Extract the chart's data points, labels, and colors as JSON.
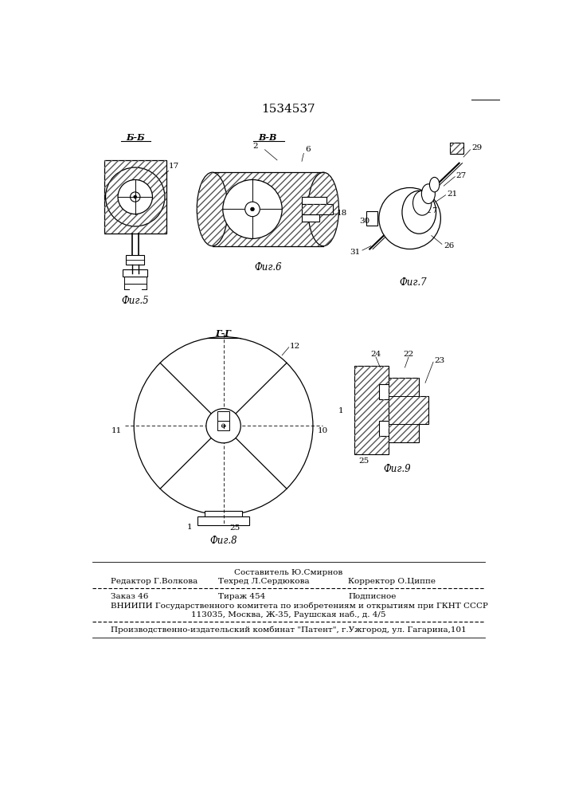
{
  "title": "1534537",
  "bg_color": "#ffffff",
  "line_color": "#000000",
  "fig5_label": "Фиг.5",
  "fig5_section": "Б-Б",
  "fig6_label": "Фиг.6",
  "fig6_section": "В-В",
  "fig7_label": "Фиг.7",
  "fig8_label": "Фиг.8",
  "fig8_section": "Г-Г",
  "fig9_label": "Фиг.9",
  "footer_line0": "Составитель Ю.Смирнов",
  "footer_line1_col1": "Редактор Г.Волкова",
  "footer_line1_col2": "Техред Л.Сердюкова",
  "footer_line1_col3": "Корректор О.Циппе",
  "footer_line2_col1": "Заказ 46",
  "footer_line2_col2": "Тираж 454",
  "footer_line2_col3": "Подписное",
  "footer_line3": "ВНИИПИ Государственного комитета по изобретениям и открытиям при ГКНТ СССР",
  "footer_line4": "113035, Москва, Ж-35, Раушская наб., д. 4/5",
  "footer_line5": "Производственно-издательский комбинат \"Патент\", г.Ужгород, ул. Гагарина,101"
}
